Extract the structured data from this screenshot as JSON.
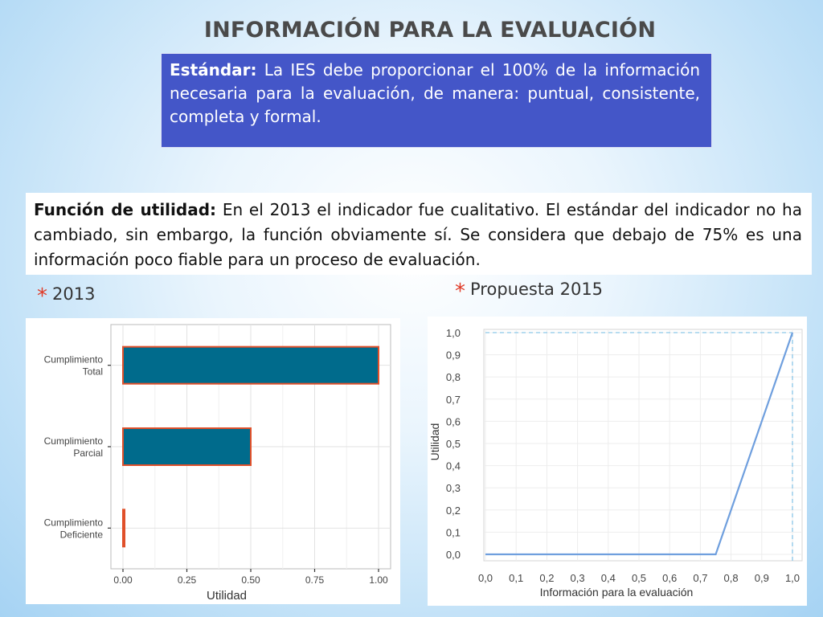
{
  "slide": {
    "title": "INFORMACIÓN PARA LA EVALUACIÓN",
    "standard": {
      "label": "Estándar:",
      "text": " La IES debe proporcionar el 100% de la información necesaria para la evaluación, de manera: puntual, consistente, completa y formal."
    },
    "utility": {
      "label": "Función de utilidad:",
      "text": " En el 2013 el indicador fue cualitativo. El estándar del indicador no ha cambiado, sin embargo, la función obviamente sí. Se considera que debajo de 75% es una información poco fiable para un proceso de evaluación."
    },
    "bullets": [
      {
        "star": "*",
        "label": "2013"
      },
      {
        "star": "*",
        "label": "Propuesta 2015"
      }
    ],
    "colors": {
      "box_blue": "#4456c8",
      "bar_fill": "#006b8c",
      "bar_edge": "#e0502a",
      "line": "#6f9fde",
      "star": "#e03a26"
    }
  },
  "chart_data": [
    {
      "type": "bar",
      "orientation": "horizontal",
      "categories": [
        [
          "Cumplimiento",
          "Total"
        ],
        [
          "Cumplimiento",
          "Parcial"
        ],
        [
          "Cumplimiento",
          "Deficiente"
        ]
      ],
      "values": [
        1.0,
        0.5,
        0.0
      ],
      "xlabel": "Utilidad",
      "xlim": [
        0,
        1
      ],
      "xticks": [
        "0.00",
        "0.25",
        "0.50",
        "0.75",
        "1.00"
      ],
      "grid": true
    },
    {
      "type": "line",
      "x": [
        0.0,
        0.75,
        1.0
      ],
      "y": [
        0.0,
        0.0,
        1.0
      ],
      "xlabel": "Información para la evaluación",
      "ylabel": "Utilidad",
      "xlim": [
        0,
        1
      ],
      "ylim": [
        0,
        1
      ],
      "xticks": [
        "0,0",
        "0,1",
        "0,2",
        "0,3",
        "0,4",
        "0,5",
        "0,6",
        "0,7",
        "0,8",
        "0,9",
        "1,0"
      ],
      "yticks": [
        "0,0",
        "0,1",
        "0,2",
        "0,3",
        "0,4",
        "0,5",
        "0,6",
        "0,7",
        "0,8",
        "0,9",
        "1,0"
      ],
      "grid": true,
      "reference_lines": {
        "y": 1.0,
        "x": 1.0,
        "style": "dashed"
      }
    }
  ]
}
